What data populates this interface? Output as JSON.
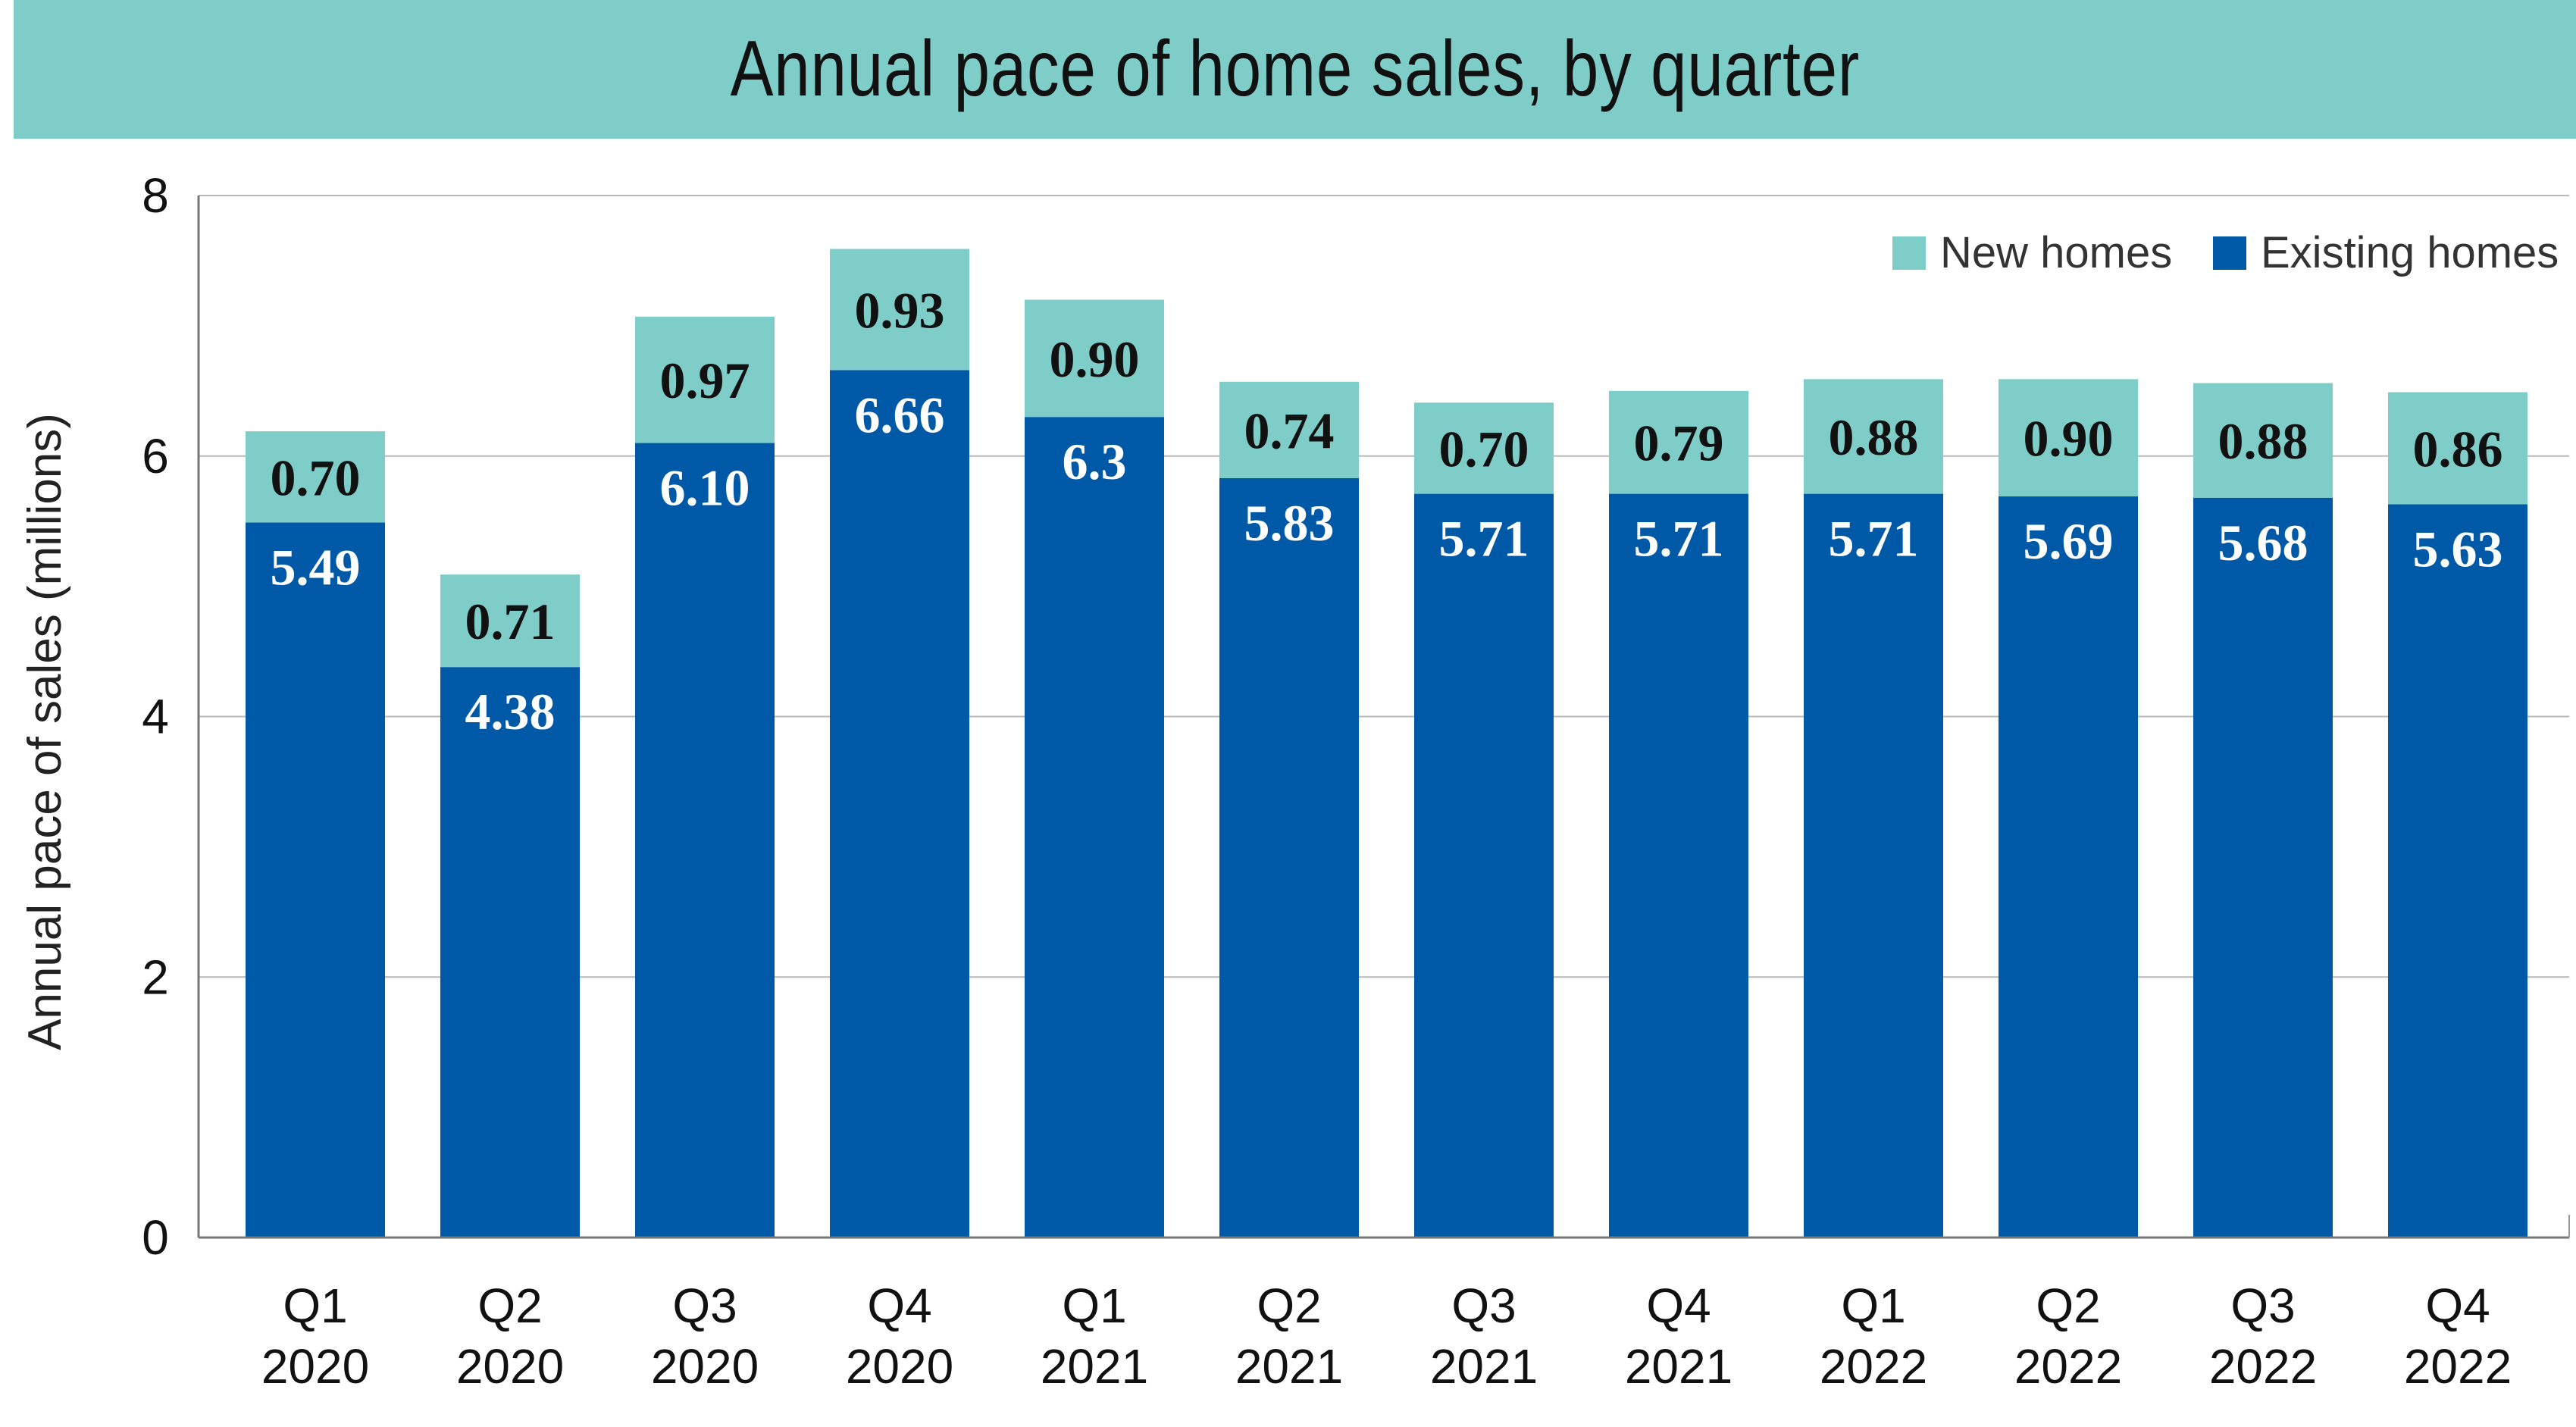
{
  "title": "Annual pace of home sales, by quarter",
  "colors": {
    "new": "#7ecdc8",
    "existing": "#0059a7",
    "title_bg": "#7ecdc8",
    "grid": "#b9b9b9"
  },
  "chart_data": {
    "type": "bar",
    "stacked": true,
    "title": "Annual pace of home sales, by quarter",
    "ylabel": "Annual pace of sales (millions)",
    "xlabel": "",
    "ylim": [
      0,
      8
    ],
    "yticks": [
      0,
      2,
      4,
      6,
      8
    ],
    "grid": true,
    "legend_position": "top-right",
    "categories": [
      [
        "Q1",
        "2020"
      ],
      [
        "Q2",
        "2020"
      ],
      [
        "Q3",
        "2020"
      ],
      [
        "Q4",
        "2020"
      ],
      [
        "Q1",
        "2021"
      ],
      [
        "Q2",
        "2021"
      ],
      [
        "Q3",
        "2021"
      ],
      [
        "Q4",
        "2021"
      ],
      [
        "Q1",
        "2022"
      ],
      [
        "Q2",
        "2022"
      ],
      [
        "Q3",
        "2022"
      ],
      [
        "Q4",
        "2022"
      ]
    ],
    "series": [
      {
        "name": "Existing homes",
        "color": "#0059a7",
        "values": [
          5.49,
          4.38,
          6.1,
          6.66,
          6.3,
          5.83,
          5.71,
          5.71,
          5.71,
          5.69,
          5.68,
          5.63
        ],
        "labels": [
          "5.49",
          "4.38",
          "6.10",
          "6.66",
          "6.3",
          "5.83",
          "5.71",
          "5.71",
          "5.71",
          "5.69",
          "5.68",
          "5.63"
        ]
      },
      {
        "name": "New homes",
        "color": "#7ecdc8",
        "values": [
          0.7,
          0.71,
          0.97,
          0.93,
          0.9,
          0.74,
          0.7,
          0.79,
          0.88,
          0.9,
          0.88,
          0.86
        ],
        "labels": [
          "0.70",
          "0.71",
          "0.97",
          "0.93",
          "0.90",
          "0.74",
          "0.70",
          "0.79",
          "0.88",
          "0.90",
          "0.88",
          "0.86"
        ]
      }
    ],
    "legend": [
      "New homes",
      "Existing homes"
    ]
  }
}
